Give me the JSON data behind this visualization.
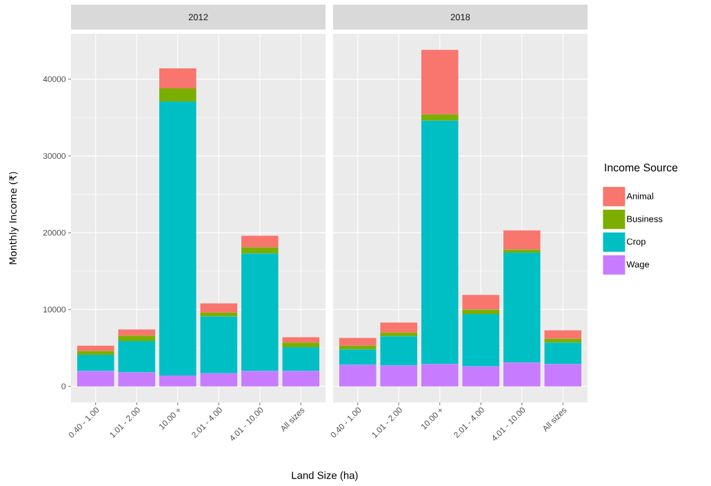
{
  "chart_data": [
    {
      "type": "bar",
      "title": "2012",
      "xlabel": "Land Size (ha)",
      "ylabel": "Monthly Income (₹)",
      "stacked": true,
      "grid": true,
      "legend": "right",
      "legend_title": "Income Source",
      "categories": [
        "0.40 - 1.00",
        "1.01 - 2.00",
        "10.00 +",
        "2.01 - 4.00",
        "4.01 - 10.00",
        "All sizes"
      ],
      "ylim": [
        -2100,
        45900
      ],
      "yticks": [
        0,
        10000,
        20000,
        30000,
        40000
      ],
      "series": [
        {
          "name": "Wage",
          "color": "#c77cff",
          "values": [
            2000,
            1800,
            1400,
            1700,
            2000,
            2000
          ]
        },
        {
          "name": "Crop",
          "color": "#00bfc4",
          "values": [
            2100,
            4100,
            35700,
            7400,
            15300,
            3100
          ]
        },
        {
          "name": "Business",
          "color": "#7cae00",
          "values": [
            500,
            700,
            1700,
            500,
            800,
            600
          ]
        },
        {
          "name": "Animal",
          "color": "#f8766d",
          "values": [
            700,
            800,
            2600,
            1200,
            1500,
            700
          ]
        }
      ]
    },
    {
      "type": "bar",
      "title": "2018",
      "stacked": true,
      "grid": true,
      "tick_labels": "x",
      "categories": [
        "0.40 - 1.00",
        "1.01 - 2.00",
        "10.00 +",
        "2.01 - 4.00",
        "4.01 - 10.00",
        "All sizes"
      ],
      "ylim": [
        -2100,
        45900
      ],
      "yticks": [
        0,
        10000,
        20000,
        30000,
        40000
      ],
      "series": [
        {
          "color": "#c77cff",
          "values": [
            2800,
            2700,
            2900,
            2600,
            3100,
            2900
          ]
        },
        {
          "color": "#00bfc4",
          "values": [
            2000,
            3800,
            31700,
            6800,
            14300,
            2800
          ]
        },
        {
          "color": "#7cae00",
          "values": [
            500,
            500,
            800,
            600,
            400,
            500
          ]
        },
        {
          "color": "#f8766d",
          "values": [
            1000,
            1300,
            8400,
            1900,
            2500,
            1100
          ]
        }
      ]
    }
  ]
}
